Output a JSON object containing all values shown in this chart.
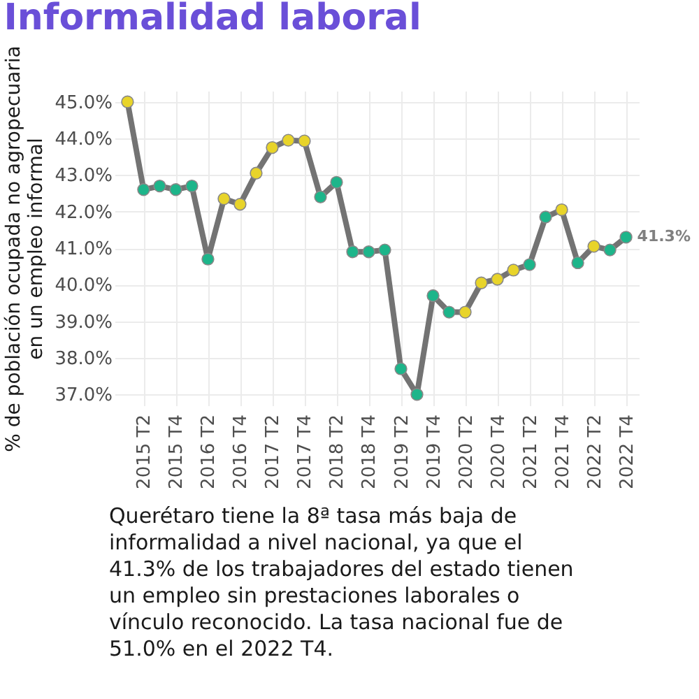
{
  "chart_data": {
    "type": "line",
    "title": "Informalidad laboral",
    "ylabel": "% de población ocupada no agropecuaria en un empleo informal",
    "categories": [
      null,
      "2015 T2",
      null,
      "2015 T4",
      null,
      "2016 T2",
      null,
      "2016 T4",
      null,
      "2017 T2",
      null,
      "2017 T4",
      null,
      "2018 T2",
      null,
      "2018 T4",
      null,
      "2019 T2",
      null,
      "2019 T4",
      null,
      "2020 T2",
      null,
      "2020 T4",
      null,
      "2021 T2",
      null,
      "2021 T4",
      null,
      "2022 T2",
      null,
      "2022 T4"
    ],
    "series": [
      {
        "color": "#737373",
        "values": [
          45.0,
          42.6,
          42.7,
          42.6,
          42.7,
          40.7,
          42.35,
          42.2,
          43.05,
          43.75,
          43.95,
          43.93,
          42.4,
          42.8,
          40.9,
          40.9,
          40.95,
          37.7,
          37.0,
          39.7,
          39.25,
          39.25,
          40.05,
          40.15,
          40.4,
          40.55,
          41.85,
          42.05,
          40.6,
          41.05,
          40.95,
          41.3
        ],
        "colors": [
          "#e8d42a",
          "#1db58a",
          "#1db58a",
          "#1db58a",
          "#1db58a",
          "#1db58a",
          "#e8d42a",
          "#e8d42a",
          "#e8d42a",
          "#e8d42a",
          "#e8d42a",
          "#e8d42a",
          "#1db58a",
          "#1db58a",
          "#1db58a",
          "#1db58a",
          "#1db58a",
          "#1db58a",
          "#1db58a",
          "#1db58a",
          "#1db58a",
          "#e8d42a",
          "#e8d42a",
          "#e8d42a",
          "#e8d42a",
          "#1db58a",
          "#1db58a",
          "#e8d42a",
          "#1db58a",
          "#e8d42a",
          "#1db58a",
          "#1db58a"
        ],
        "value_labels": [
          null,
          null,
          null,
          null,
          null,
          null,
          null,
          null,
          null,
          null,
          null,
          null,
          null,
          null,
          null,
          null,
          null,
          null,
          null,
          null,
          null,
          null,
          null,
          null,
          null,
          null,
          null,
          null,
          null,
          null,
          null,
          "41.3%"
        ]
      }
    ],
    "ylim": [
      36.7,
      45.3
    ],
    "yticks": [
      {
        "value": 37,
        "label": "37.0%"
      },
      {
        "value": 38,
        "label": "38.0%"
      },
      {
        "value": 39,
        "label": "39.0%"
      },
      {
        "value": 40,
        "label": "40.0%"
      },
      {
        "value": 41,
        "label": "41.0%"
      },
      {
        "value": 42,
        "label": "42.0%"
      },
      {
        "value": 43,
        "label": "43.0%"
      },
      {
        "value": 44,
        "label": "44.0%"
      },
      {
        "value": 45,
        "label": "45.0%"
      }
    ],
    "grid": true,
    "marker": "circle",
    "line_style": "solid",
    "annotations": [
      "Querétaro tiene la 8ª tasa más baja de informalidad a nivel nacional, ya que el 41.3% de los trabajadores del estado tienen un empleo sin prestaciones laborales o vínculo reconocido. La tasa nacional fue de 51.0% en el 2022 T4."
    ]
  }
}
